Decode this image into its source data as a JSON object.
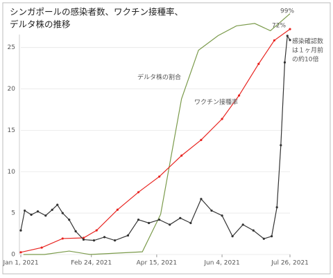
{
  "chart_data": {
    "type": "line",
    "title": [
      "シンガポールの感染者数、ワクチン接種率、",
      "デルタ株の推移"
    ],
    "xlim": [
      "2021-01-01",
      "2021-07-26"
    ],
    "xticks": [
      {
        "value": "2021-01-01",
        "label": "Jan 1, 2021"
      },
      {
        "value": "2021-02-24",
        "label": "Feb 24, 2021"
      },
      {
        "value": "2021-04-15",
        "label": "Apr 15, 2021"
      },
      {
        "value": "2021-06-04",
        "label": "Jun 4, 2021"
      },
      {
        "value": "2021-07-26",
        "label": "Jul 26, 2021"
      }
    ],
    "ylim": [
      0,
      29.9
    ],
    "yticks": [
      0,
      5,
      10,
      15,
      20,
      25
    ],
    "y2lim": [
      0,
      79.1
    ],
    "y3lim": [
      0,
      101.8
    ],
    "grid": true,
    "series": [
      {
        "color": "#7a9a4a",
        "axis": "y3",
        "markers": false,
        "x": [
          "2021-01-03",
          "2021-01-19",
          "2021-02-07",
          "2021-02-23",
          "2021-04-04",
          "2021-04-18",
          "2021-05-04",
          "2021-05-17",
          "2021-06-01",
          "2021-06-15",
          "2021-06-29",
          "2021-07-11",
          "2021-07-26"
        ],
        "values": [
          0,
          0,
          1.4,
          0,
          1.1,
          16.5,
          64,
          84,
          90,
          94,
          95,
          92,
          99
        ]
      },
      {
        "color": "#e8231f",
        "axis": "y2",
        "markers": true,
        "x": [
          "2021-01-01",
          "2021-01-17",
          "2021-02-02",
          "2021-02-18",
          "2021-02-28",
          "2021-03-16",
          "2021-04-01",
          "2021-04-17",
          "2021-05-04",
          "2021-05-19",
          "2021-06-04",
          "2021-06-17",
          "2021-07-02",
          "2021-07-14",
          "2021-07-26"
        ],
        "values": [
          0.7,
          2.2,
          5.1,
          5.3,
          7.7,
          14.3,
          19.9,
          24.9,
          31.6,
          36.6,
          43.3,
          50.8,
          60.9,
          68.4,
          72
        ]
      },
      {
        "color": "#333333",
        "axis": "y",
        "markers": true,
        "x": [
          "2021-01-01",
          "2021-01-04",
          "2021-01-09",
          "2021-01-14",
          "2021-01-20",
          "2021-01-25",
          "2021-01-29",
          "2021-02-02",
          "2021-02-07",
          "2021-02-12",
          "2021-02-18",
          "2021-02-26",
          "2021-03-06",
          "2021-03-14",
          "2021-03-24",
          "2021-04-01",
          "2021-04-09",
          "2021-04-17",
          "2021-04-25",
          "2021-05-03",
          "2021-05-11",
          "2021-05-19",
          "2021-05-27",
          "2021-06-04",
          "2021-06-12",
          "2021-06-20",
          "2021-06-28",
          "2021-07-06",
          "2021-07-12",
          "2021-07-16",
          "2021-07-19",
          "2021-07-22",
          "2021-07-24",
          "2021-07-26"
        ],
        "values": [
          2.9,
          5.3,
          4.8,
          5.2,
          4.7,
          5.4,
          6.0,
          5.0,
          4.2,
          2.8,
          1.8,
          1.7,
          2.1,
          1.7,
          2.3,
          4.2,
          3.8,
          4.2,
          3.6,
          4.4,
          3.8,
          6.7,
          5.3,
          4.7,
          2.2,
          3.6,
          2.9,
          1.9,
          2.2,
          5.7,
          13.2,
          23.2,
          26.4,
          25.9
        ]
      }
    ],
    "annotations": [
      {
        "text": [
          "99%"
        ],
        "color": "#7a9a4a"
      },
      {
        "text": [
          "72%"
        ],
        "color": "#e8231f"
      },
      {
        "text": [
          "デルタ株の割合"
        ],
        "color": "#5a7a30"
      },
      {
        "text": [
          "ワクチン接種率"
        ],
        "color": "#e8231f"
      },
      {
        "text": [
          "感染確認数",
          "は１ヶ月前",
          "の約10倍"
        ],
        "color": "#333333"
      }
    ]
  }
}
